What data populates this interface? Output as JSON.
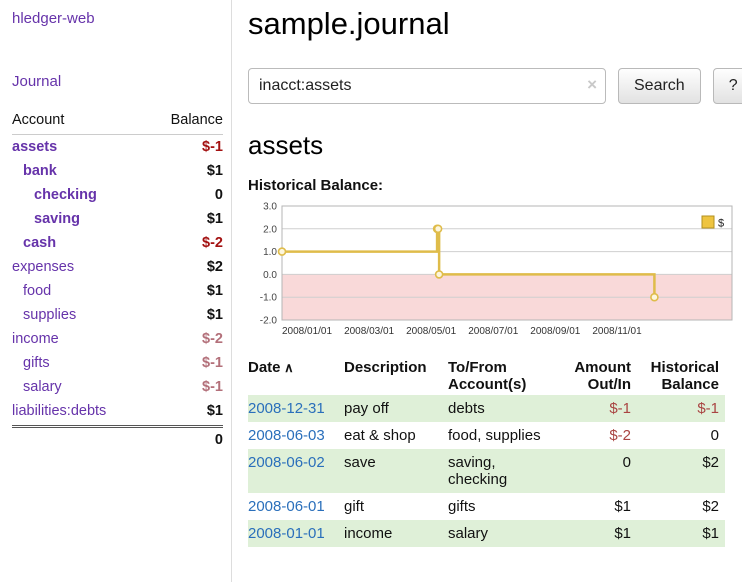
{
  "app": {
    "title": "hledger-web"
  },
  "sidebar": {
    "journal_link": "Journal",
    "accounts_header": {
      "account": "Account",
      "balance": "Balance"
    },
    "accounts": [
      {
        "name": "assets",
        "balance": "$-1",
        "indent": 0,
        "bold": true
      },
      {
        "name": "bank",
        "balance": "$1",
        "indent": 1,
        "bold": true
      },
      {
        "name": "checking",
        "balance": "0",
        "indent": 2,
        "bold": true
      },
      {
        "name": "saving",
        "balance": "$1",
        "indent": 2,
        "bold": true
      },
      {
        "name": "cash",
        "balance": "$-2",
        "indent": 1,
        "bold": true
      },
      {
        "name": "expenses",
        "balance": "$2",
        "indent": 0,
        "bold": false
      },
      {
        "name": "food",
        "balance": "$1",
        "indent": 1,
        "bold": false
      },
      {
        "name": "supplies",
        "balance": "$1",
        "indent": 1,
        "bold": false
      },
      {
        "name": "income",
        "balance": "$-2",
        "indent": 0,
        "bold": false
      },
      {
        "name": "gifts",
        "balance": "$-1",
        "indent": 1,
        "bold": false
      },
      {
        "name": "salary",
        "balance": "$-1",
        "indent": 1,
        "bold": false
      },
      {
        "name": "liabilities:debts",
        "balance": "$1",
        "indent": 0,
        "bold": false
      }
    ],
    "total": "0"
  },
  "page": {
    "title": "sample.journal"
  },
  "search": {
    "value": "inacct:assets",
    "clear_icon": "×",
    "search_button": "Search",
    "help_button": "?"
  },
  "register": {
    "heading": "assets",
    "chart_title": "Historical Balance:",
    "table": {
      "headers": [
        {
          "label": "Date",
          "align": "left",
          "sorted": "asc",
          "sort_icon": "∧"
        },
        {
          "label": "Description",
          "align": "left"
        },
        {
          "label": "To/From Account(s)",
          "align": "left"
        },
        {
          "label": "Amount Out/In",
          "align": "right"
        },
        {
          "label": "Historical Balance",
          "align": "right"
        }
      ],
      "rows": [
        {
          "date": "2008-12-31",
          "description": "pay off",
          "accounts": "debts",
          "amount": "$-1",
          "balance": "$-1"
        },
        {
          "date": "2008-06-03",
          "description": "eat & shop",
          "accounts": "food, supplies",
          "amount": "$-2",
          "balance": "0"
        },
        {
          "date": "2008-06-02",
          "description": "save",
          "accounts": "saving, checking",
          "amount": "0",
          "balance": "$2"
        },
        {
          "date": "2008-06-01",
          "description": "gift",
          "accounts": "gifts",
          "amount": "$1",
          "balance": "$2"
        },
        {
          "date": "2008-01-01",
          "description": "income",
          "accounts": "salary",
          "amount": "$1",
          "balance": "$1"
        }
      ]
    }
  },
  "chart_data": {
    "type": "line",
    "title": "Historical Balance",
    "xlabel": "",
    "ylabel": "",
    "ylim": [
      -2,
      3
    ],
    "yticks": [
      3,
      2,
      1,
      0,
      -1,
      -2
    ],
    "xticks": [
      "2008/01/01",
      "2008/03/01",
      "2008/05/01",
      "2008/07/01",
      "2008/09/01",
      "2008/11/01"
    ],
    "xtick_interval_months": 2,
    "x_start": "2008-01-01",
    "x_total_months": 14.5,
    "grid": true,
    "legend": {
      "label": "$",
      "position": "top-right"
    },
    "series": [
      {
        "name": "$",
        "step": true,
        "points": [
          {
            "date": "2008-01-01",
            "value": 1
          },
          {
            "date": "2008-06-01",
            "value": 2
          },
          {
            "date": "2008-06-02",
            "value": 2
          },
          {
            "date": "2008-06-03",
            "value": 0
          },
          {
            "date": "2008-12-31",
            "value": -1
          }
        ]
      }
    ],
    "colors": {
      "line": "#dfbc4a",
      "marker_fill": "#fdf6dc",
      "negative_region": "#f9d9d9",
      "legend_fill": "#eec440",
      "legend_border": "#b18f1f"
    }
  }
}
